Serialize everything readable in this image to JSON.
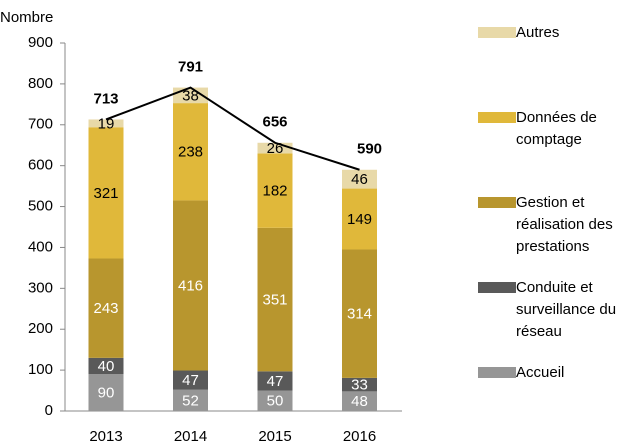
{
  "chart_data": {
    "type": "stacked_bar",
    "y_label": "Nombre",
    "categories": [
      "2013",
      "2014",
      "2015",
      "2016"
    ],
    "series": [
      {
        "name": "Accueil",
        "color": "#969696",
        "label_color": "#ffffff",
        "values": [
          90,
          52,
          50,
          48
        ]
      },
      {
        "name": "Conduite et surveillance du réseau",
        "color": "#595959",
        "label_color": "#ffffff",
        "values": [
          40,
          47,
          47,
          33
        ]
      },
      {
        "name": "Gestion et réalisation des prestations",
        "color": "#b8962e",
        "label_color": "#ffffff",
        "values": [
          243,
          416,
          351,
          314
        ]
      },
      {
        "name": "Données de comptage",
        "color": "#e0b83a",
        "label_color": "#000000",
        "values": [
          321,
          238,
          182,
          149
        ]
      },
      {
        "name": "Autres",
        "color": "#e8d9a8",
        "label_color": "#000000",
        "values": [
          19,
          38,
          26,
          46
        ]
      }
    ],
    "totals": {
      "color": "#000000",
      "values": [
        713,
        791,
        656,
        590
      ]
    },
    "ylim": [
      0,
      900
    ],
    "yticks": [
      0,
      100,
      200,
      300,
      400,
      500,
      600,
      700,
      800,
      900
    ],
    "grid": false
  }
}
